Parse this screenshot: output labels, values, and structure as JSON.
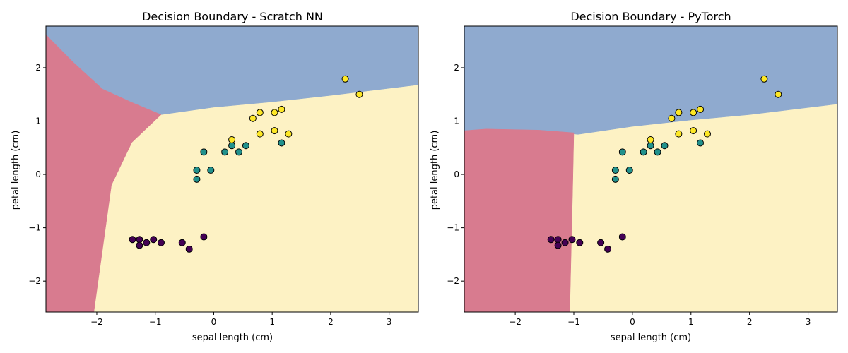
{
  "chart_data": [
    {
      "type": "scatter",
      "title": "Decision Boundary - Scratch NN",
      "xlabel": "sepal length (cm)",
      "ylabel": "petal length (cm)",
      "xlim": [
        -2.87,
        3.5
      ],
      "ylim": [
        -2.58,
        2.78
      ],
      "xticks": [
        -2,
        -1,
        0,
        1,
        2,
        3
      ],
      "yticks": [
        -2,
        -1,
        0,
        1,
        2
      ],
      "xtick_labels": [
        "−2",
        "−1",
        "0",
        "1",
        "2",
        "3"
      ],
      "ytick_labels": [
        "−2",
        "−1",
        "0",
        "1",
        "2"
      ],
      "grid": false,
      "region_colors": {
        "class0": "#d87b8f",
        "class1": "#fdf2c4",
        "class2": "#8faacf"
      },
      "point_colors": {
        "class0": "#440154",
        "class1": "#21918c",
        "class2": "#fde725"
      },
      "decision_regions": {
        "class0": [
          [
            -2.87,
            2.62
          ],
          [
            -2.4,
            2.1
          ],
          [
            -1.9,
            1.6
          ],
          [
            -1.4,
            1.35
          ],
          [
            -0.9,
            1.12
          ],
          [
            -1.4,
            0.6
          ],
          [
            -1.75,
            -0.2
          ],
          [
            -2.05,
            -2.58
          ],
          [
            -2.87,
            -2.58
          ]
        ],
        "class2": [
          [
            -2.87,
            2.62
          ],
          [
            -2.4,
            2.1
          ],
          [
            -1.9,
            1.6
          ],
          [
            -1.4,
            1.35
          ],
          [
            -0.9,
            1.12
          ],
          [
            0,
            1.26
          ],
          [
            1,
            1.36
          ],
          [
            2,
            1.48
          ],
          [
            3.5,
            1.68
          ],
          [
            3.5,
            2.78
          ],
          [
            -2.87,
            2.78
          ]
        ]
      },
      "points": [
        {
          "x": -1.39,
          "y": -1.22,
          "class": 0
        },
        {
          "x": -1.27,
          "y": -1.22,
          "class": 0
        },
        {
          "x": -1.27,
          "y": -1.33,
          "class": 0
        },
        {
          "x": -1.15,
          "y": -1.28,
          "class": 0
        },
        {
          "x": -1.03,
          "y": -1.22,
          "class": 0
        },
        {
          "x": -0.9,
          "y": -1.28,
          "class": 0
        },
        {
          "x": -0.54,
          "y": -1.28,
          "class": 0
        },
        {
          "x": -0.42,
          "y": -1.4,
          "class": 0
        },
        {
          "x": -0.17,
          "y": -1.17,
          "class": 0
        },
        {
          "x": -0.29,
          "y": 0.08,
          "class": 1
        },
        {
          "x": -0.29,
          "y": -0.09,
          "class": 1
        },
        {
          "x": -0.17,
          "y": 0.42,
          "class": 1
        },
        {
          "x": -0.05,
          "y": 0.08,
          "class": 1
        },
        {
          "x": 0.19,
          "y": 0.42,
          "class": 1
        },
        {
          "x": 0.31,
          "y": 0.54,
          "class": 1
        },
        {
          "x": 0.43,
          "y": 0.42,
          "class": 1
        },
        {
          "x": 0.55,
          "y": 0.54,
          "class": 1
        },
        {
          "x": 1.16,
          "y": 0.59,
          "class": 1
        },
        {
          "x": 0.31,
          "y": 0.65,
          "class": 2
        },
        {
          "x": 0.67,
          "y": 1.05,
          "class": 2
        },
        {
          "x": 0.79,
          "y": 1.16,
          "class": 2
        },
        {
          "x": 0.79,
          "y": 0.76,
          "class": 2
        },
        {
          "x": 1.04,
          "y": 1.16,
          "class": 2
        },
        {
          "x": 1.04,
          "y": 0.82,
          "class": 2
        },
        {
          "x": 1.16,
          "y": 1.22,
          "class": 2
        },
        {
          "x": 1.28,
          "y": 0.76,
          "class": 2
        },
        {
          "x": 2.25,
          "y": 1.79,
          "class": 2
        },
        {
          "x": 2.49,
          "y": 1.5,
          "class": 2
        }
      ]
    },
    {
      "type": "scatter",
      "title": "Decision Boundary - PyTorch",
      "xlabel": "sepal length (cm)",
      "ylabel": "petal length (cm)",
      "xlim": [
        -2.87,
        3.5
      ],
      "ylim": [
        -2.58,
        2.78
      ],
      "xticks": [
        -2,
        -1,
        0,
        1,
        2,
        3
      ],
      "yticks": [
        -2,
        -1,
        0,
        1,
        2
      ],
      "xtick_labels": [
        "−2",
        "−1",
        "0",
        "1",
        "2",
        "3"
      ],
      "ytick_labels": [
        "−2",
        "−1",
        "0",
        "1",
        "2"
      ],
      "grid": false,
      "region_colors": {
        "class0": "#d87b8f",
        "class1": "#fdf2c4",
        "class2": "#8faacf"
      },
      "point_colors": {
        "class0": "#440154",
        "class1": "#21918c",
        "class2": "#fde725"
      },
      "decision_regions": {
        "class0": [
          [
            -2.87,
            0.82
          ],
          [
            -2.5,
            0.85
          ],
          [
            -1.6,
            0.83
          ],
          [
            -1.0,
            0.78
          ],
          [
            -1.02,
            -0.3
          ],
          [
            -1.07,
            -2.58
          ],
          [
            -2.87,
            -2.58
          ]
        ],
        "class2": [
          [
            -2.87,
            0.82
          ],
          [
            -2.5,
            0.85
          ],
          [
            -1.6,
            0.83
          ],
          [
            -0.93,
            0.75
          ],
          [
            0,
            0.9
          ],
          [
            1,
            1.02
          ],
          [
            2,
            1.12
          ],
          [
            3.5,
            1.32
          ],
          [
            3.5,
            2.78
          ],
          [
            -2.87,
            2.78
          ]
        ]
      },
      "points": [
        {
          "x": -1.39,
          "y": -1.22,
          "class": 0
        },
        {
          "x": -1.27,
          "y": -1.22,
          "class": 0
        },
        {
          "x": -1.27,
          "y": -1.33,
          "class": 0
        },
        {
          "x": -1.15,
          "y": -1.28,
          "class": 0
        },
        {
          "x": -1.03,
          "y": -1.22,
          "class": 0
        },
        {
          "x": -0.9,
          "y": -1.28,
          "class": 0
        },
        {
          "x": -0.54,
          "y": -1.28,
          "class": 0
        },
        {
          "x": -0.42,
          "y": -1.4,
          "class": 0
        },
        {
          "x": -0.17,
          "y": -1.17,
          "class": 0
        },
        {
          "x": -0.29,
          "y": 0.08,
          "class": 1
        },
        {
          "x": -0.29,
          "y": -0.09,
          "class": 1
        },
        {
          "x": -0.17,
          "y": 0.42,
          "class": 1
        },
        {
          "x": -0.05,
          "y": 0.08,
          "class": 1
        },
        {
          "x": 0.19,
          "y": 0.42,
          "class": 1
        },
        {
          "x": 0.31,
          "y": 0.54,
          "class": 1
        },
        {
          "x": 0.43,
          "y": 0.42,
          "class": 1
        },
        {
          "x": 0.55,
          "y": 0.54,
          "class": 1
        },
        {
          "x": 1.16,
          "y": 0.59,
          "class": 1
        },
        {
          "x": 0.31,
          "y": 0.65,
          "class": 2
        },
        {
          "x": 0.67,
          "y": 1.05,
          "class": 2
        },
        {
          "x": 0.79,
          "y": 1.16,
          "class": 2
        },
        {
          "x": 0.79,
          "y": 0.76,
          "class": 2
        },
        {
          "x": 1.04,
          "y": 1.16,
          "class": 2
        },
        {
          "x": 1.04,
          "y": 0.82,
          "class": 2
        },
        {
          "x": 1.16,
          "y": 1.22,
          "class": 2
        },
        {
          "x": 1.28,
          "y": 0.76,
          "class": 2
        },
        {
          "x": 2.25,
          "y": 1.79,
          "class": 2
        },
        {
          "x": 2.49,
          "y": 1.5,
          "class": 2
        }
      ]
    }
  ]
}
